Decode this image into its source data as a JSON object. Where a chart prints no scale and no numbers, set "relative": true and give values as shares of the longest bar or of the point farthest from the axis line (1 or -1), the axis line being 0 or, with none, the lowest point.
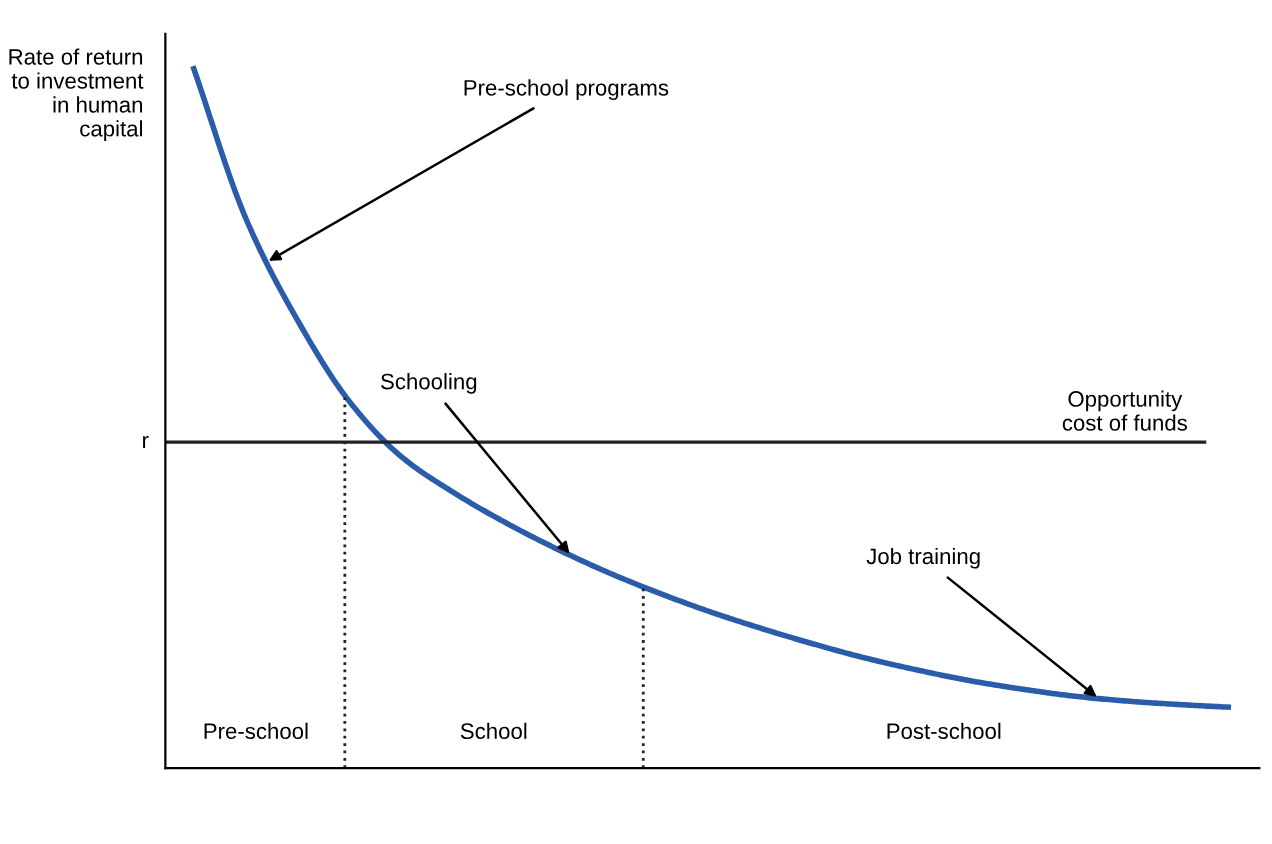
{
  "chart_data": {
    "type": "line",
    "relative": true,
    "ylabel": "Rate of return\nto investment\nin human\ncapital",
    "categories": [
      null,
      null,
      null,
      null,
      null,
      null,
      null,
      null,
      null,
      null,
      null,
      null,
      null,
      null,
      null,
      null,
      null,
      null,
      null,
      null,
      null
    ],
    "series": [
      {
        "color": "#2a5caa",
        "values": [
          1.0,
          0.787,
          0.641,
          0.525,
          0.446,
          0.395,
          0.352,
          0.314,
          0.28,
          0.25,
          0.223,
          0.199,
          0.177,
          0.157,
          0.14,
          0.125,
          0.113,
          0.103,
          0.096,
          0.091,
          0.087
        ]
      }
    ],
    "ref_lines": [
      {
        "axis": "y",
        "value": 0.466,
        "label": "Opportunity\ncost of funds",
        "color": "#222222",
        "line_style": "solid"
      }
    ],
    "annotations": [
      "r",
      "Pre-school programs",
      "Schooling",
      "Job training",
      "Pre-school",
      "School",
      "Post-school"
    ],
    "grid": false,
    "legend": false,
    "marker": "none",
    "line_style": "solid"
  }
}
